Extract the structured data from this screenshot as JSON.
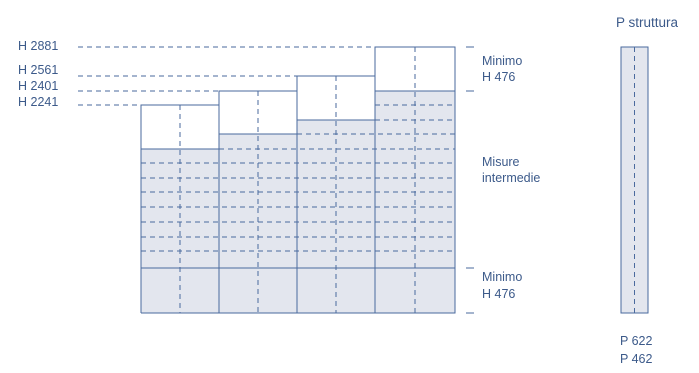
{
  "height_labels": [
    "H 2881",
    "H 2561",
    "H 2401",
    "H 2241"
  ],
  "annotations": {
    "top_min_line1": "Minimo",
    "top_min_line2": "H 476",
    "mid_line1": "Misure",
    "mid_line2": "intermedie",
    "bottom_min_line1": "Minimo",
    "bottom_min_line2": "H 476"
  },
  "structure": {
    "title": "P struttura",
    "depth_1": "P 622",
    "depth_2": "P 462"
  },
  "colors": {
    "line": "#4a6a9e",
    "fill": "#e3e6ee",
    "text": "#3c5a8a"
  }
}
